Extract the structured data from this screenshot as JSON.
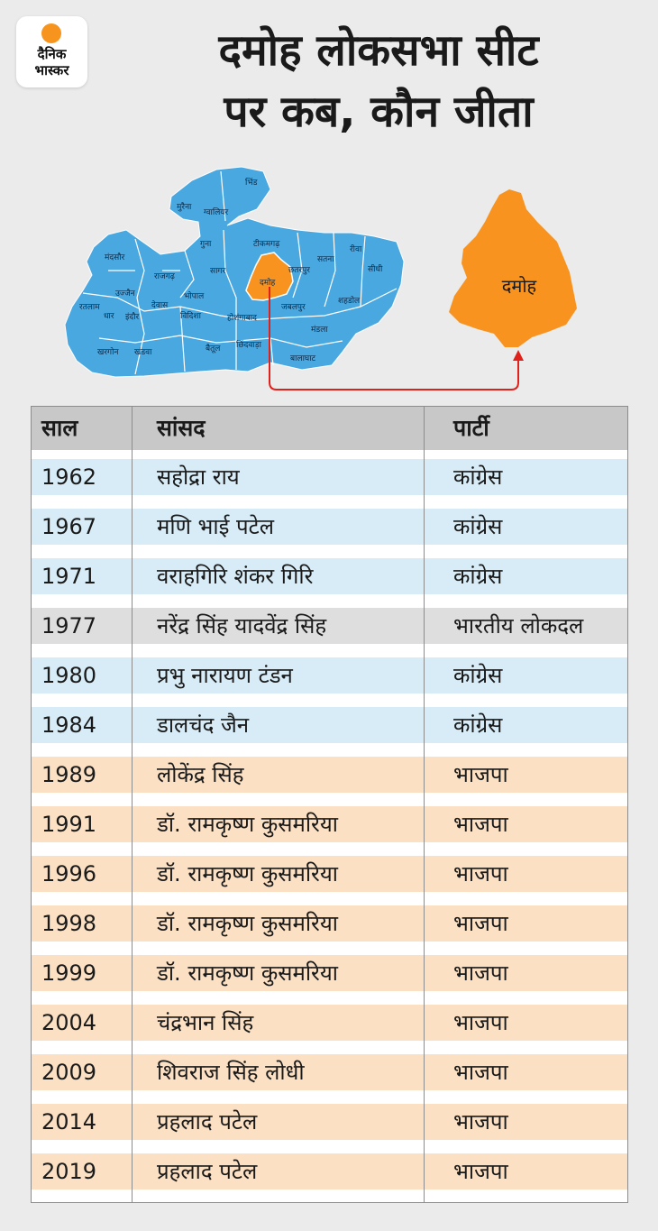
{
  "logo": {
    "line1": "दैनिक",
    "line2": "भास्कर"
  },
  "title": {
    "line1": "दमोह लोकसभा सीट",
    "line2": "पर कब, कौन जीता"
  },
  "map": {
    "districts": [
      "भिंड",
      "मुरैना",
      "ग्वालियर",
      "गुना",
      "टीकमगढ़",
      "रीवा",
      "मंदसौर",
      "सतना",
      "सीधी",
      "छतरपुर",
      "राजगढ़",
      "सागर",
      "दमोह",
      "उज्जैन",
      "भोपाल",
      "शहडोल",
      "रतलाम",
      "देवास",
      "विदिशा",
      "जबलपुर",
      "धार",
      "इंदौर",
      "होशंगाबाद",
      "मंडला",
      "खरगोन",
      "खंडवा",
      "बैतूल",
      "छिंदवाड़ा",
      "बालाघाट"
    ],
    "highlight": "दमोह",
    "callout_label": "दमोह",
    "colors": {
      "state": "#4aa8e0",
      "border": "#ffffff",
      "highlight": "#f7931e",
      "arrow": "#e0201b"
    }
  },
  "table": {
    "headers": {
      "year": "साल",
      "mp": "सांसद",
      "party": "पार्टी"
    },
    "colors": {
      "header": "#c8c8c8",
      "congress": "#d7ecf7",
      "lokdal": "#dedede",
      "bjp": "#fbe0c4"
    },
    "rows": [
      {
        "year": "1962",
        "mp": "सहोद्रा राय",
        "party": "कांग्रेस",
        "group": "cong"
      },
      {
        "year": "1967",
        "mp": "मणि भाई पटेल",
        "party": "कांग्रेस",
        "group": "cong"
      },
      {
        "year": "1971",
        "mp": "वराहगिरि शंकर गिरि",
        "party": "कांग्रेस",
        "group": "cong"
      },
      {
        "year": "1977",
        "mp": "नरेंद्र सिंह यादवेंद्र सिंह",
        "party": "भारतीय लोकदल",
        "group": "bld"
      },
      {
        "year": "1980",
        "mp": "प्रभु नारायण टंडन",
        "party": "कांग्रेस",
        "group": "cong"
      },
      {
        "year": "1984",
        "mp": "डालचंद जैन",
        "party": "कांग्रेस",
        "group": "cong"
      },
      {
        "year": "1989",
        "mp": "लोकेंद्र सिंह",
        "party": "भाजपा",
        "group": "bjp"
      },
      {
        "year": "1991",
        "mp": "डॉ. रामकृष्ण कुसमरिया",
        "party": "भाजपा",
        "group": "bjp"
      },
      {
        "year": "1996",
        "mp": "डॉ. रामकृष्ण कुसमरिया",
        "party": "भाजपा",
        "group": "bjp"
      },
      {
        "year": "1998",
        "mp": "डॉ. रामकृष्ण कुसमरिया",
        "party": "भाजपा",
        "group": "bjp"
      },
      {
        "year": "1999",
        "mp": "डॉ. रामकृष्ण कुसमरिया",
        "party": "भाजपा",
        "group": "bjp"
      },
      {
        "year": "2004",
        "mp": "चंद्रभान सिंह",
        "party": "भाजपा",
        "group": "bjp"
      },
      {
        "year": "2009",
        "mp": "शिवराज सिंह लोधी",
        "party": "भाजपा",
        "group": "bjp"
      },
      {
        "year": "2014",
        "mp": "प्रहलाद पटेल",
        "party": "भाजपा",
        "group": "bjp"
      },
      {
        "year": "2019",
        "mp": "प्रहलाद पटेल",
        "party": "भाजपा",
        "group": "bjp"
      }
    ]
  }
}
